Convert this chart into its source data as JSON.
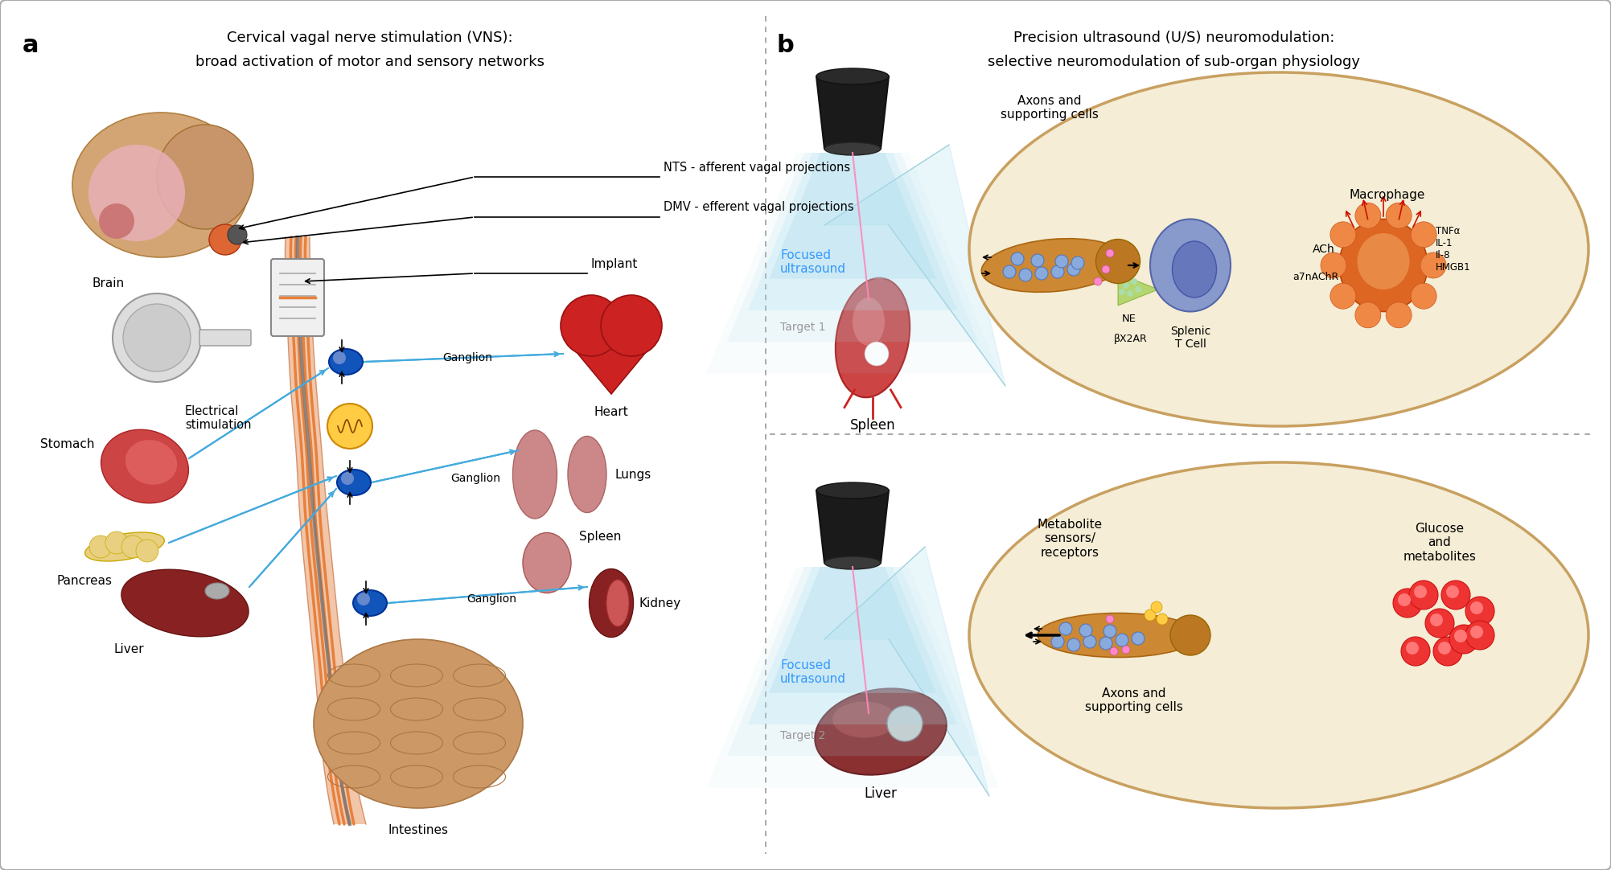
{
  "figure_width": 20.03,
  "figure_height": 10.82,
  "background_color": "#ffffff",
  "border_color": "#aaaaaa",
  "panel_a": {
    "label": "a",
    "title_line1": "Cervical vagal nerve stimulation (VNS):",
    "title_line2": "broad activation of motor and sensory networks",
    "labels": {
      "brain": "Brain",
      "stomach": "Stomach",
      "pancreas": "Pancreas",
      "liver": "Liver",
      "heart": "Heart",
      "lungs": "Lungs",
      "spleen": "Spleen",
      "kidney": "Kidney",
      "intestines": "Intestines",
      "ganglion1": "Ganglion",
      "ganglion2": "Ganglion",
      "ganglion3": "Ganglion",
      "implant": "Implant",
      "electrical_stimulation": "Electrical\nstimulation",
      "nts": "NTS - afferent vagal projections",
      "dmv": "DMV - efferent vagal projections"
    }
  },
  "panel_b": {
    "label": "b",
    "title_line1": "Precision ultrasound (U/S) neuromodulation:",
    "title_line2": "selective neuromodulation of sub-organ physiology",
    "target1": {
      "label": "Target 1",
      "organ": "Spleen",
      "focused_ultrasound": "Focused\nultrasound"
    },
    "target2": {
      "label": "Target 2",
      "organ": "Liver",
      "focused_ultrasound": "Focused\nultrasound"
    }
  },
  "colors": {
    "vagus_nerve_orange": "#E8803C",
    "vagus_nerve_pink": "#F0C0A0",
    "vagus_nerve_dark": "#CC4400",
    "vagus_nerve_gray": "#888888",
    "blue_connections": "#44AADD",
    "ganglion_blue": "#1155BB",
    "brain_tan": "#D4A574",
    "brain_tan2": "#C8956A",
    "brain_pink": "#E8B0B8",
    "brainstem_orange": "#DD6633",
    "organ_heart_red": "#CC2222",
    "organ_heart_dark": "#991111",
    "lung_pink": "#CC8888",
    "stomach_red": "#CC4444",
    "liver_dark": "#882222",
    "kidney_dark": "#882222",
    "intestine_tan": "#CC9966",
    "pancreas_yellow": "#E8D888",
    "panel_divider": "#999999",
    "ellipse_bg": "#F5EDD5",
    "ellipse_border": "#C8A060",
    "beam_blue": "#AADDEE",
    "beam_pink": "#FFAACC",
    "focused_text_blue": "#3399FF",
    "target_gray": "#999999",
    "axon_orange": "#CC8833",
    "axon_tan": "#AA7722",
    "tcell_blue_light": "#99AADD",
    "tcell_blue_dark": "#5566AA",
    "macrophage_orange": "#DD6622",
    "macrophage_light": "#EE9944",
    "green_triangle": "#99CC44",
    "red_arrow": "#CC2200",
    "metabolite_red": "#EE3333"
  }
}
